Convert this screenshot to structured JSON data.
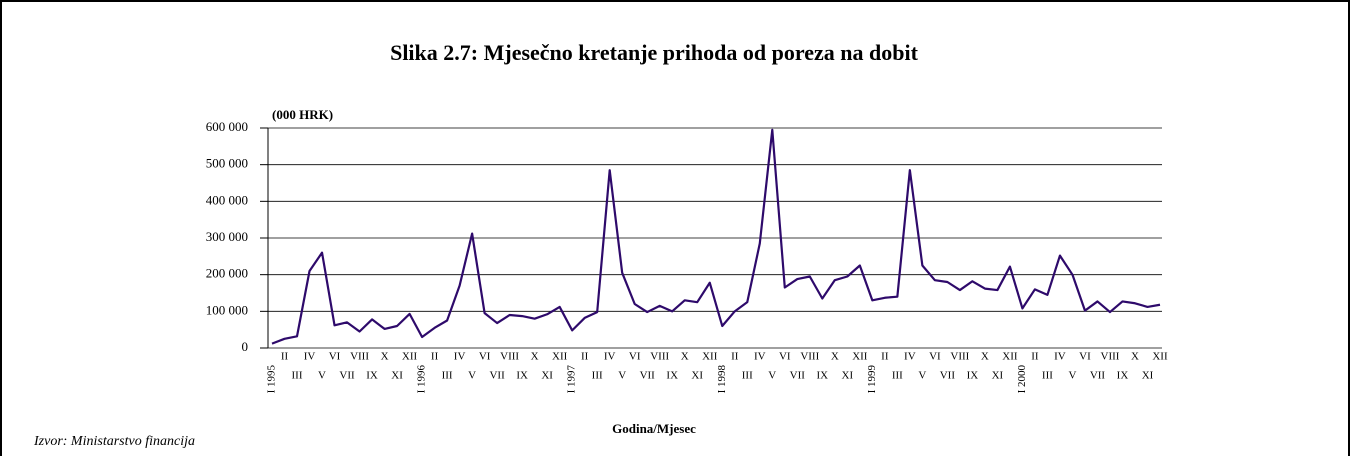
{
  "chart_data": {
    "type": "line",
    "title": "Slika 2.7: Mjesečno kretanje prihoda od poreza na dobit",
    "y_unit": "(000 HRK)",
    "x_label": "Godina/Mjesec",
    "source": "Izvor: Ministarstvo financija",
    "categories": [
      "I 1995",
      "II",
      "III",
      "IV",
      "V",
      "VI",
      "VII",
      "VIII",
      "IX",
      "X",
      "XI",
      "XII",
      "I 1996",
      "II",
      "III",
      "IV",
      "V",
      "VI",
      "VII",
      "VIII",
      "IX",
      "X",
      "XI",
      "XII",
      "I 1997",
      "II",
      "III",
      "IV",
      "V",
      "VI",
      "VII",
      "VIII",
      "IX",
      "X",
      "XI",
      "XII",
      "I 1998",
      "II",
      "III",
      "IV",
      "V",
      "VI",
      "VII",
      "VIII",
      "IX",
      "X",
      "XI",
      "XII",
      "I 1999",
      "II",
      "III",
      "IV",
      "V",
      "VI",
      "VII",
      "VIII",
      "IX",
      "X",
      "XI",
      "XII",
      "I 2000",
      "II",
      "III",
      "IV",
      "V",
      "VI",
      "VII",
      "VIII",
      "IX",
      "X",
      "XI",
      "XII"
    ],
    "series": [
      {
        "color": "#2e0a6b",
        "values": [
          12000,
          25000,
          32000,
          210000,
          260000,
          62000,
          70000,
          45000,
          78000,
          52000,
          60000,
          93000,
          30000,
          55000,
          75000,
          170000,
          312000,
          95000,
          68000,
          90000,
          87000,
          80000,
          92000,
          112000,
          48000,
          82000,
          98000,
          485000,
          205000,
          120000,
          98000,
          115000,
          100000,
          130000,
          125000,
          178000,
          60000,
          100000,
          125000,
          285000,
          595000,
          165000,
          188000,
          195000,
          135000,
          185000,
          195000,
          225000,
          130000,
          137000,
          140000,
          485000,
          225000,
          185000,
          180000,
          158000,
          182000,
          162000,
          158000,
          222000,
          108000,
          160000,
          145000,
          252000,
          200000,
          102000,
          127000,
          98000,
          127000,
          122000,
          112000,
          118000
        ]
      }
    ],
    "ylim": [
      0,
      600000
    ],
    "yticks": [
      0,
      {
        "value": 100000,
        "label": "100 000"
      },
      {
        "value": 200000,
        "label": "200 000"
      },
      {
        "value": 300000,
        "label": "300 000"
      },
      {
        "value": 400000,
        "label": "400 000"
      },
      {
        "value": 500000,
        "label": "500 000"
      },
      {
        "value": 600000,
        "label": "600 000"
      }
    ],
    "grid": true
  }
}
